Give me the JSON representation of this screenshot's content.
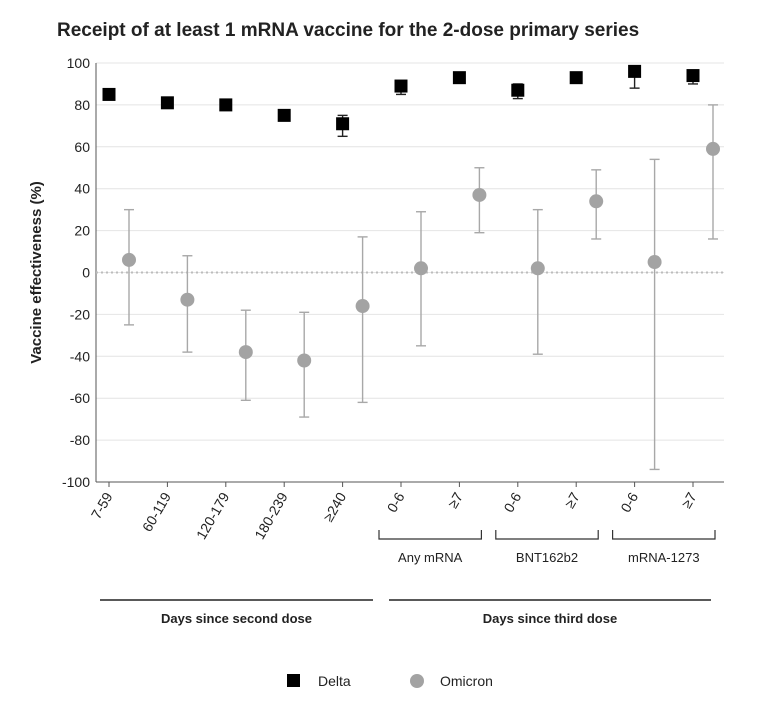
{
  "chart_data": {
    "type": "scatter",
    "title": "Receipt of at least 1 mRNA vaccine for the 2-dose primary series",
    "ylabel": "Vaccine effectiveness (%)",
    "ylim": [
      -100,
      100
    ],
    "yticks": [
      100,
      80,
      60,
      40,
      20,
      0,
      -20,
      -40,
      -60,
      -80,
      -100
    ],
    "reference_line": 0,
    "categories": [
      "7-59",
      "60-119",
      "120-179",
      "180-239",
      "≥240",
      "0-6",
      "≥7",
      "0-6",
      "≥7",
      "0-6",
      "≥7"
    ],
    "groups": [
      {
        "label": "Any mRNA",
        "from": 5,
        "to": 6
      },
      {
        "label": "BNT162b2",
        "from": 7,
        "to": 8
      },
      {
        "label": "mRNA-1273",
        "from": 9,
        "to": 10
      }
    ],
    "sections": [
      {
        "label": "Days since second dose",
        "from": 0,
        "to": 4
      },
      {
        "label": "Days since third dose",
        "from": 5,
        "to": 10
      }
    ],
    "series": [
      {
        "name": "Delta",
        "marker": "square",
        "color": "#000000",
        "values": [
          85,
          81,
          80,
          75,
          71,
          89,
          93,
          87,
          93,
          96,
          94
        ],
        "lower": [
          null,
          null,
          null,
          null,
          65,
          85,
          null,
          83,
          null,
          88,
          90
        ],
        "upper": [
          null,
          null,
          null,
          null,
          75,
          91,
          null,
          90,
          null,
          98,
          96
        ]
      },
      {
        "name": "Omicron",
        "marker": "circle",
        "color": "#a3a3a3",
        "values": [
          6,
          -13,
          -38,
          -42,
          -16,
          2,
          37,
          2,
          34,
          5,
          59
        ],
        "lower": [
          -25,
          -38,
          -61,
          -69,
          -62,
          -35,
          19,
          -39,
          16,
          -94,
          16
        ],
        "upper": [
          30,
          8,
          -18,
          -19,
          17,
          29,
          50,
          30,
          49,
          54,
          80
        ]
      }
    ],
    "legend": [
      "Delta",
      "Omicron"
    ]
  }
}
